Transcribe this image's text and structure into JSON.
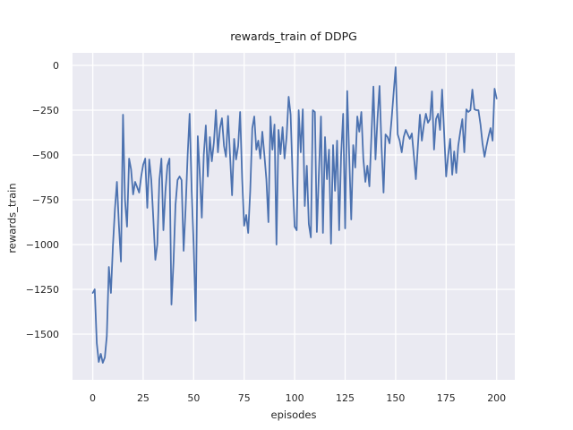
{
  "title": "rewards_train of DDPG",
  "axes": {
    "xlabel": "episodes",
    "ylabel": "rewards_train",
    "x_ticks": [
      0,
      25,
      50,
      75,
      100,
      125,
      150,
      175,
      200
    ],
    "x_tick_labels": [
      "0",
      "25",
      "50",
      "75",
      "100",
      "125",
      "150",
      "175",
      "200"
    ],
    "y_ticks": [
      0,
      -250,
      -500,
      -750,
      -1000,
      -1250,
      -1500
    ],
    "y_tick_labels": [
      "0",
      "−250",
      "−500",
      "−750",
      "−1000",
      "−1250",
      "−1500"
    ],
    "grid": "on",
    "grid_color": "#ffffff",
    "plot_bg_color": "#eaeaf2",
    "figure_bg_color": "#ffffff",
    "text_color": "#262626"
  },
  "chart_data": {
    "type": "line",
    "title": "rewards_train of DDPG",
    "xlabel": "episodes",
    "ylabel": "rewards_train",
    "legend": "none",
    "line_color": "#4c72b0",
    "line_width": 1.8,
    "xlim": [
      -10,
      209
    ],
    "ylim": [
      -1755,
      70
    ],
    "x_start": 0,
    "x_step": 1,
    "series_name": "rewards_train",
    "values": [
      -1270,
      -1250,
      -1550,
      -1655,
      -1610,
      -1660,
      -1630,
      -1510,
      -1125,
      -1270,
      -1010,
      -800,
      -650,
      -900,
      -1095,
      -275,
      -750,
      -900,
      -520,
      -580,
      -720,
      -650,
      -680,
      -710,
      -620,
      -555,
      -520,
      -795,
      -525,
      -640,
      -850,
      -1085,
      -1000,
      -640,
      -520,
      -920,
      -700,
      -560,
      -520,
      -1335,
      -1100,
      -780,
      -640,
      -620,
      -640,
      -1035,
      -800,
      -500,
      -270,
      -700,
      -1000,
      -1425,
      -395,
      -600,
      -850,
      -500,
      -335,
      -620,
      -400,
      -535,
      -430,
      -250,
      -485,
      -350,
      -295,
      -450,
      -510,
      -282,
      -500,
      -725,
      -410,
      -525,
      -450,
      -260,
      -635,
      -895,
      -835,
      -935,
      -700,
      -350,
      -285,
      -470,
      -420,
      -520,
      -370,
      -500,
      -635,
      -875,
      -285,
      -470,
      -330,
      -1000,
      -360,
      -495,
      -345,
      -520,
      -400,
      -175,
      -275,
      -635,
      -900,
      -920,
      -250,
      -485,
      -245,
      -785,
      -560,
      -885,
      -960,
      -250,
      -260,
      -930,
      -600,
      -285,
      -935,
      -400,
      -635,
      -470,
      -995,
      -445,
      -700,
      -420,
      -920,
      -500,
      -270,
      -910,
      -143,
      -500,
      -860,
      -445,
      -570,
      -285,
      -370,
      -260,
      -520,
      -650,
      -560,
      -675,
      -400,
      -118,
      -525,
      -300,
      -115,
      -450,
      -710,
      -385,
      -400,
      -435,
      -300,
      -150,
      -10,
      -385,
      -420,
      -485,
      -400,
      -360,
      -385,
      -410,
      -380,
      -500,
      -635,
      -455,
      -275,
      -420,
      -330,
      -270,
      -320,
      -300,
      -145,
      -470,
      -300,
      -270,
      -360,
      -135,
      -380,
      -620,
      -500,
      -410,
      -610,
      -480,
      -600,
      -450,
      -370,
      -300,
      -485,
      -245,
      -260,
      -250,
      -135,
      -245,
      -250,
      -250,
      -330,
      -435,
      -510,
      -450,
      -395,
      -350,
      -420,
      -130,
      -185
    ]
  }
}
